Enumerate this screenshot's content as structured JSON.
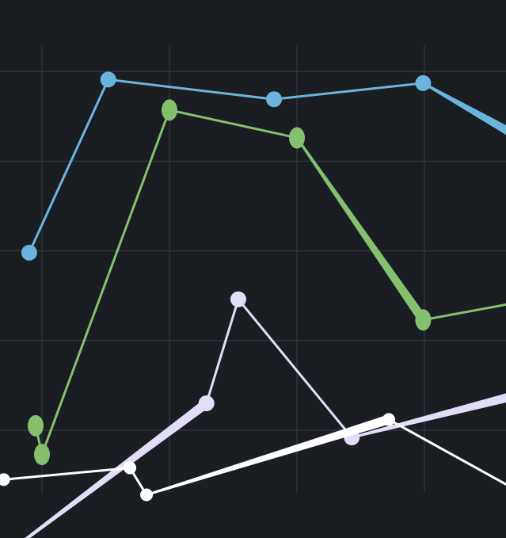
{
  "chart_data": {
    "type": "line",
    "title": "",
    "xlabel": "",
    "ylabel": "",
    "grid": true,
    "background": "#1a1d22",
    "grid_color": "#353a41",
    "series": [
      {
        "color": "#6ab4de",
        "points": [
          [
            -0.1,
            2.98
          ],
          [
            0.52,
            4.91
          ],
          [
            1.82,
            4.69
          ],
          [
            2.99,
            4.87
          ],
          [
            3.75,
            4.26
          ]
        ],
        "thick": [
          false,
          false,
          false,
          true
        ]
      },
      {
        "color": "#84c06e",
        "points": [
          [
            -0.05,
            1.05
          ],
          [
            0.0,
            0.73
          ],
          [
            1.0,
            4.57
          ],
          [
            2.0,
            4.26
          ],
          [
            2.99,
            2.23
          ],
          [
            3.75,
            2.43
          ]
        ],
        "thick": [
          false,
          false,
          false,
          true,
          false
        ]
      },
      {
        "color": "#e3def8",
        "points": [
          [
            -0.3,
            -0.4
          ],
          [
            1.29,
            1.3
          ],
          [
            1.54,
            2.46
          ],
          [
            2.43,
            0.92
          ],
          [
            3.75,
            1.4
          ]
        ],
        "thick": [
          true,
          false,
          false,
          true
        ]
      },
      {
        "color": "#ffffff",
        "points": [
          [
            -0.3,
            0.45
          ],
          [
            0.69,
            0.58
          ],
          [
            0.82,
            0.28
          ],
          [
            2.72,
            1.12
          ],
          [
            3.75,
            0.31
          ]
        ],
        "thick": [
          false,
          false,
          true,
          false
        ]
      }
    ]
  }
}
